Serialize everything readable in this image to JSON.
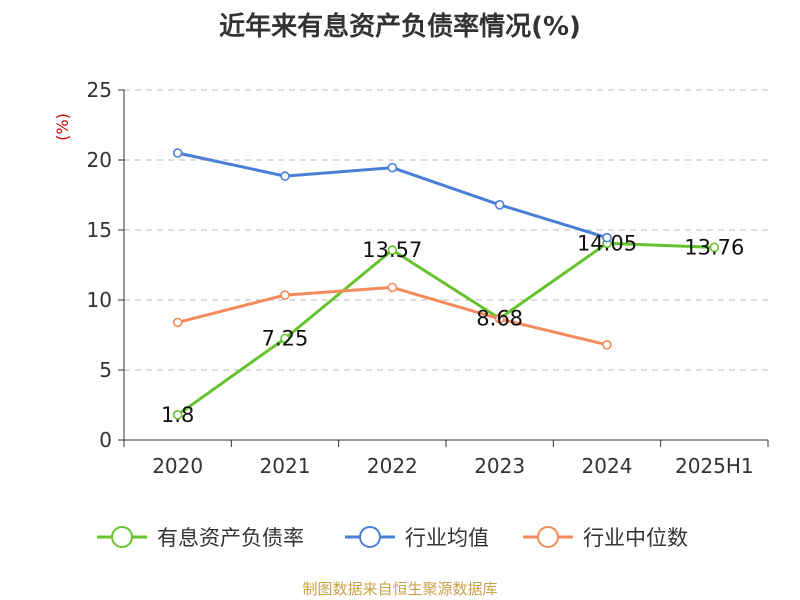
{
  "title": "近年来有息资产负债率情况(%)",
  "source": "制图数据来自恒生聚源数据库",
  "colors": {
    "debt": "#66c22e",
    "industry_avg": "#4a7fd6",
    "industry_median": "#f48b5b",
    "axis": "#333333",
    "grid": "#bbbbbb",
    "unit": "#cc0000"
  },
  "chart_data": {
    "type": "line",
    "title": "近年来有息资产负债率情况(%)",
    "ylabel": "(%)",
    "ylim": [
      0,
      25
    ],
    "yticks": [
      0,
      5,
      10,
      15,
      20,
      25
    ],
    "categories": [
      "2020",
      "2021",
      "2022",
      "2023",
      "2024",
      "2025H1"
    ],
    "grid": "horizontal dashed",
    "legend_position": "bottom",
    "series": [
      {
        "name": "有息资产负债率",
        "key": "debt",
        "values": [
          1.8,
          7.25,
          13.57,
          8.68,
          14.05,
          13.76
        ],
        "labels": [
          "1.8",
          "7.25",
          "13.57",
          "8.68",
          "14.05",
          "13.76"
        ]
      },
      {
        "name": "行业均值",
        "key": "industry_avg",
        "values": [
          20.5,
          18.85,
          19.45,
          16.8,
          14.45,
          null
        ]
      },
      {
        "name": "行业中位数",
        "key": "industry_median",
        "values": [
          8.4,
          10.35,
          10.9,
          8.65,
          6.8,
          null
        ]
      }
    ]
  }
}
